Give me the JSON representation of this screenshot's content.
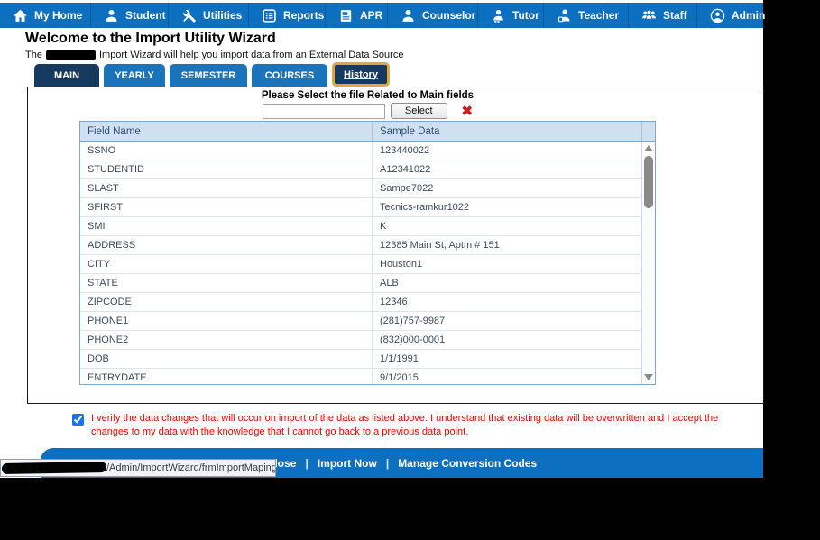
{
  "nav": {
    "items": [
      {
        "label": "My Home",
        "icon": "home-icon"
      },
      {
        "label": "Student",
        "icon": "student-icon"
      },
      {
        "label": "Utilities",
        "icon": "utilities-icon"
      },
      {
        "label": "Reports",
        "icon": "reports-icon"
      },
      {
        "label": "APR",
        "icon": "apr-icon"
      },
      {
        "label": "Counselor",
        "icon": "counselor-icon"
      },
      {
        "label": "Tutor",
        "icon": "tutor-icon"
      },
      {
        "label": "Teacher",
        "icon": "teacher-icon"
      },
      {
        "label": "Staff",
        "icon": "staff-icon"
      },
      {
        "label": "Admin",
        "icon": "admin-icon"
      }
    ]
  },
  "header": {
    "title": "Welcome to the Import Utility Wizard",
    "subtitle_prefix": "The",
    "subtitle_redacted": true,
    "subtitle_suffix": "Import Wizard will help you import data from an External Data Source"
  },
  "tabs": [
    {
      "label": "MAIN",
      "state": "active"
    },
    {
      "label": "YEARLY",
      "state": "normal"
    },
    {
      "label": "SEMESTER",
      "state": "normal"
    },
    {
      "label": "COURSES",
      "state": "normal"
    },
    {
      "label": "History",
      "state": "highlighted"
    }
  ],
  "file_select": {
    "prompt": "Please Select the file Related to Main fields",
    "input_value": "",
    "select_button_label": "Select",
    "clear_icon": "red-x-icon",
    "clear_glyph": "✖"
  },
  "table": {
    "columns": [
      "Field Name",
      "Sample Data"
    ],
    "rows": [
      [
        "SSNO",
        "123440022"
      ],
      [
        "STUDENTID",
        "A12341022"
      ],
      [
        "SLAST",
        "Sampe7022"
      ],
      [
        "SFIRST",
        "Tecnics-ramkur1022"
      ],
      [
        "SMI",
        "K"
      ],
      [
        "ADDRESS",
        "12385 Main St, Aptm # 151"
      ],
      [
        "CITY",
        "Houston1"
      ],
      [
        "STATE",
        "ALB"
      ],
      [
        "ZIPCODE",
        "12346"
      ],
      [
        "PHONE1",
        "(281)757-9987"
      ],
      [
        "PHONE2",
        "(832)000-0001"
      ],
      [
        "DOB",
        "1/1/1991"
      ],
      [
        "ENTRYDATE",
        "9/1/2015"
      ]
    ]
  },
  "verification": {
    "checked": true,
    "text": "I verify the data changes that will occur on import of the data as listed above. I understand that existing data will be overwritten and I accept the changes to my data with the knowledge that I cannot go back to a previous data point."
  },
  "footer": {
    "actions": [
      "Close",
      "Import Now",
      "Manage Conversion Codes"
    ],
    "separator": "|"
  },
  "status_bar": {
    "url_redacted_domain": true,
    "url_visible": "/Admin/ImportWizard/frmImportMaping.aspx#"
  },
  "colors": {
    "nav_blue": "#0d6fbf",
    "nav_sep": "#0a5b9e",
    "dark_navy": "#16395f",
    "tab_blue": "#1b74bb",
    "highlight_orange": "#e8a33c",
    "table_header_bg": "#cfe0f1",
    "table_border": "#7da7cd",
    "row_divider": "#dce4ee",
    "text_red": "#ff0000",
    "scroll_gray": "#8a8a8a"
  }
}
